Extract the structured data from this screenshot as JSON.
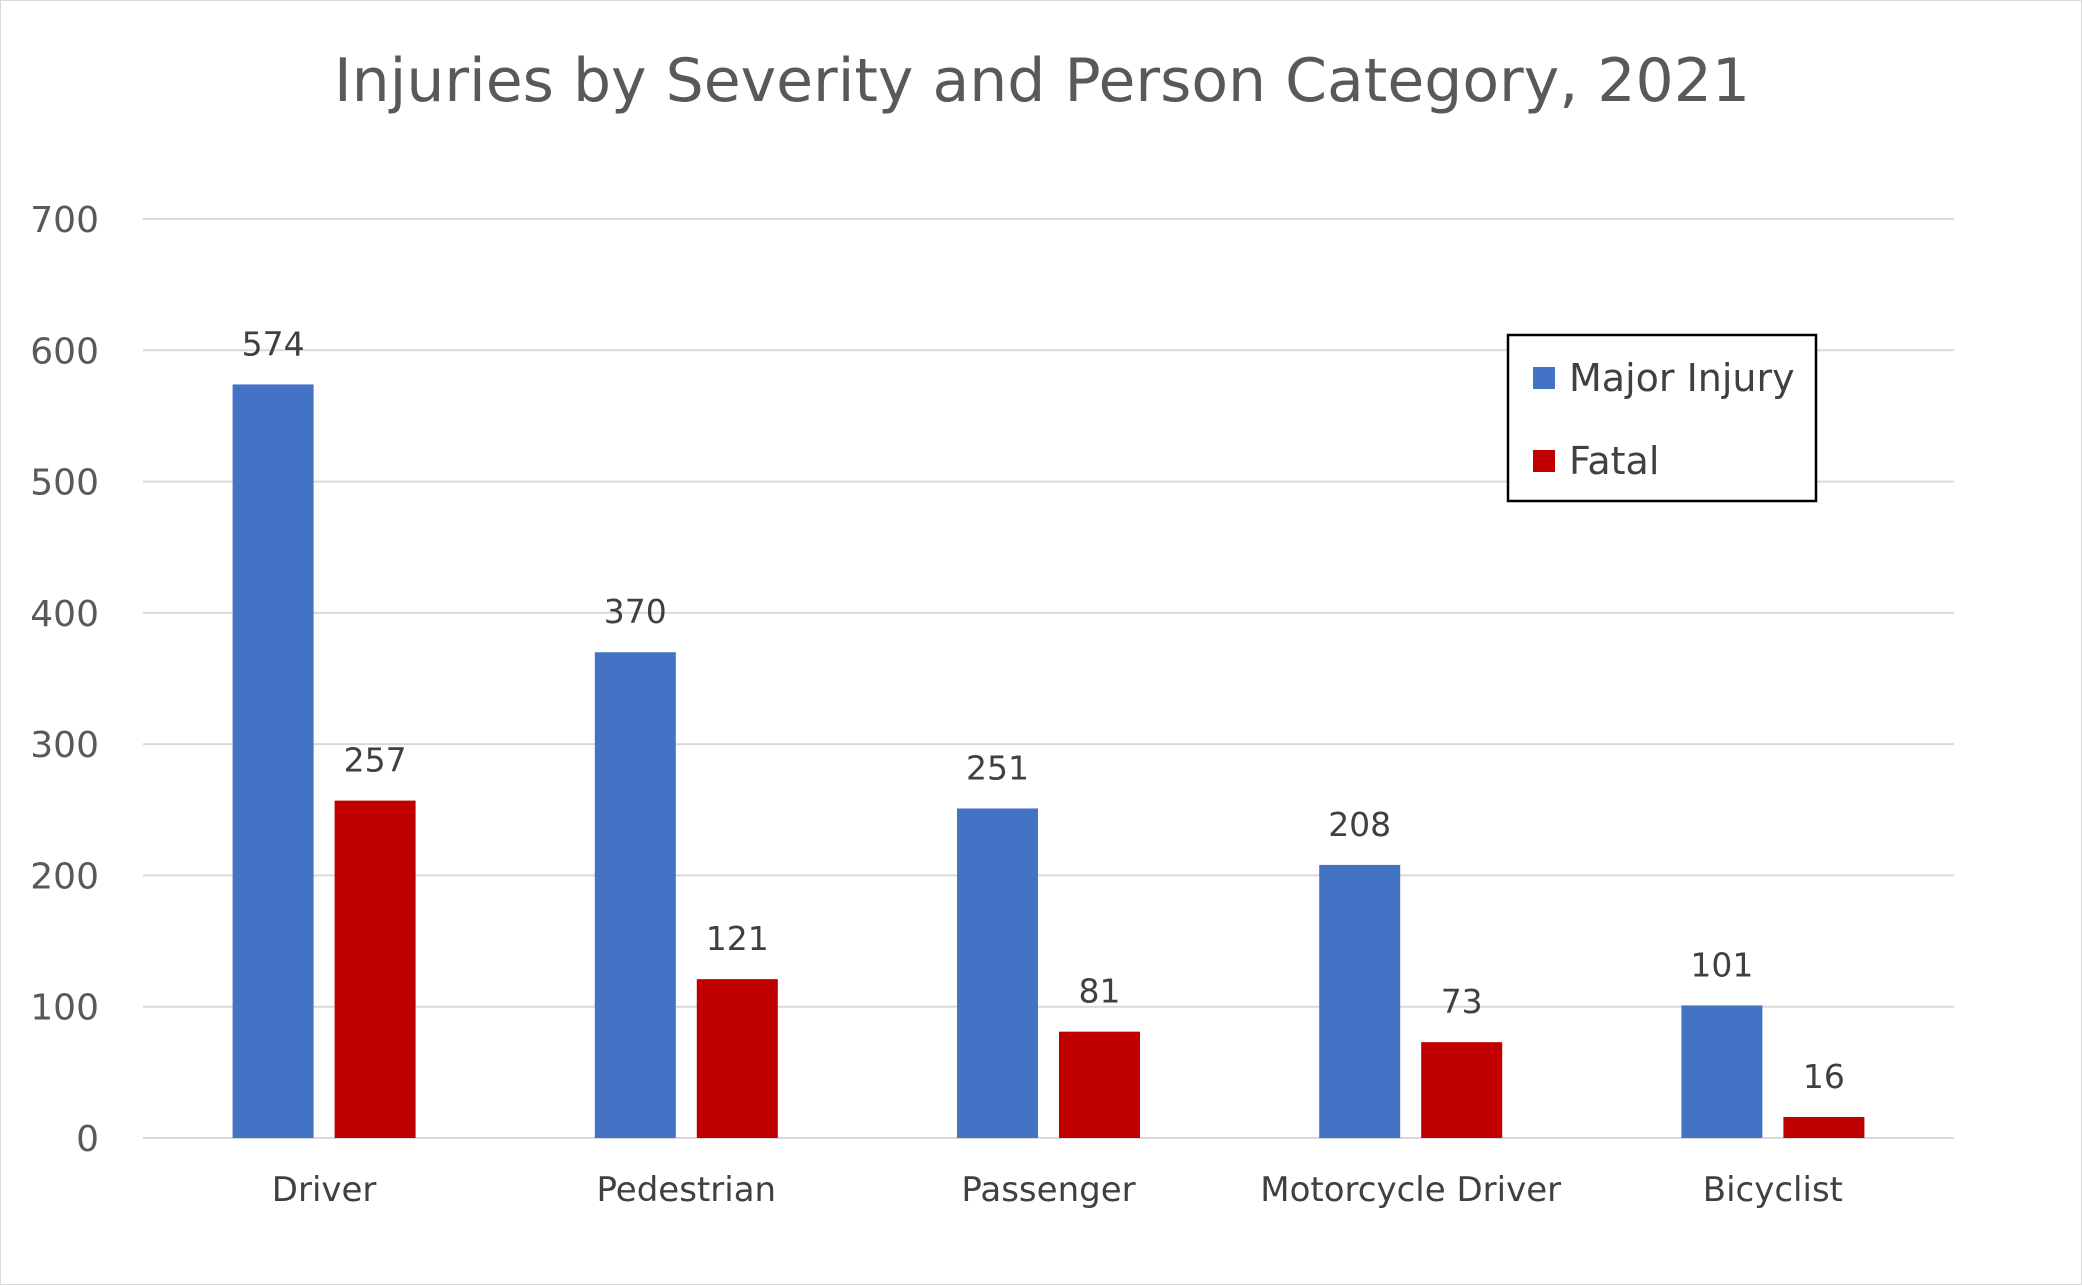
{
  "chart_data": {
    "type": "bar",
    "title": "Injuries by Severity and Person Category, 2021",
    "xlabel": "",
    "ylabel": "",
    "categories": [
      "Driver",
      "Pedestrian",
      "Passenger",
      "Motorcycle Driver",
      "Bicyclist"
    ],
    "series": [
      {
        "name": "Major Injury",
        "color": "#4472C4",
        "values": [
          574,
          370,
          251,
          208,
          101
        ]
      },
      {
        "name": "Fatal",
        "color": "#C00000",
        "values": [
          257,
          121,
          81,
          73,
          16
        ]
      }
    ],
    "ylim": [
      0,
      700
    ],
    "yticks": [
      0,
      100,
      200,
      300,
      400,
      500,
      600,
      700
    ],
    "grid": true,
    "legend_position": "top-right",
    "data_labels": true
  }
}
